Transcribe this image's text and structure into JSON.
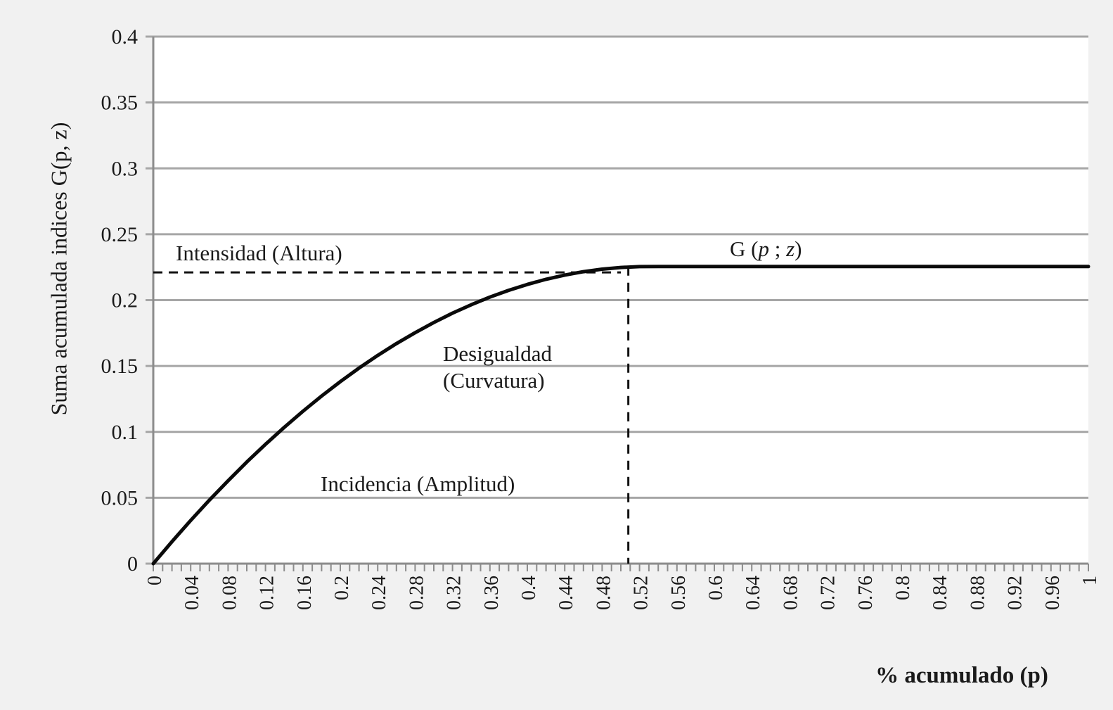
{
  "figure": {
    "background": "#f1f1f1",
    "plot_background": "#ffffff",
    "gridline_color": "#a6a6a6",
    "axis_color": "#8c8c8c",
    "curve_color": "#0a0a0a",
    "dashed_color": "#111111",
    "text_color": "#1a1a1a"
  },
  "axes": {
    "y_title": "Suma acumulada indices G(p, z)",
    "x_title": "% acumulado (p)"
  },
  "annotations": {
    "intensidad": "Intensidad (Altura)",
    "desigualdad_line1": "Desigualdad",
    "desigualdad_line2": "(Curvatura)",
    "incidencia": "Incidencia (Amplitud)",
    "g_parts": [
      "G (",
      "p",
      " ; ",
      "z",
      ")"
    ]
  },
  "chart_data": {
    "type": "line",
    "title": "",
    "xlabel": "% acumulado (p)",
    "ylabel": "Suma acumulada indices G(p, z)",
    "xlim": [
      0,
      1
    ],
    "ylim": [
      0,
      0.4
    ],
    "grid": "horizontal",
    "x_tick_labels": [
      "0",
      "0.04",
      "0.08",
      "0.12",
      "0.16",
      "0.2",
      "0.24",
      "0.28",
      "0.32",
      "0.36",
      "0.4",
      "0.44",
      "0.48",
      "0.52",
      "0.56",
      "0.6",
      "0.64",
      "0.68",
      "0.72",
      "0.76",
      "0.8",
      "0.84",
      "0.88",
      "0.92",
      "0.96",
      "1"
    ],
    "y_tick_labels": [
      "0",
      "0.05",
      "0.1",
      "0.15",
      "0.2",
      "0.25",
      "0.3",
      "0.35",
      "0.4"
    ],
    "series": [
      {
        "name": "G (p ; z)",
        "x": [
          0,
          0.02,
          0.04,
          0.06,
          0.08,
          0.1,
          0.12,
          0.14,
          0.16,
          0.18,
          0.2,
          0.22,
          0.24,
          0.26,
          0.28,
          0.3,
          0.32,
          0.34,
          0.36,
          0.38,
          0.4,
          0.42,
          0.44,
          0.46,
          0.48,
          0.5,
          0.52,
          0.54,
          0.56,
          0.58,
          0.6,
          0.62,
          0.64,
          0.66,
          0.68,
          0.7,
          0.72,
          0.74,
          0.76,
          0.78,
          0.8,
          0.82,
          0.84,
          0.86,
          0.88,
          0.9,
          0.92,
          0.94,
          0.96,
          0.98,
          1
        ],
        "y": [
          0,
          0.0167,
          0.0328,
          0.0482,
          0.0629,
          0.0771,
          0.0906,
          0.1034,
          0.1156,
          0.1272,
          0.1381,
          0.1484,
          0.158,
          0.167,
          0.1753,
          0.183,
          0.1901,
          0.1965,
          0.2023,
          0.2074,
          0.2119,
          0.2158,
          0.219,
          0.2216,
          0.2235,
          0.2248,
          0.2254,
          0.2255,
          0.2255,
          0.2255,
          0.2255,
          0.2255,
          0.2255,
          0.2255,
          0.2255,
          0.2255,
          0.2255,
          0.2255,
          0.2255,
          0.2255,
          0.2255,
          0.2255,
          0.2255,
          0.2255,
          0.2255,
          0.2255,
          0.2255,
          0.2255,
          0.2255,
          0.2255,
          0.2255
        ]
      }
    ],
    "reference_lines": [
      {
        "orientation": "horizontal",
        "value": 0.221,
        "from": 0,
        "to": 0.5,
        "style": "dashed"
      },
      {
        "orientation": "vertical",
        "value": 0.508,
        "from": 0,
        "to": 0.2255,
        "style": "dashed"
      }
    ],
    "plateau_value": 0.2255
  }
}
